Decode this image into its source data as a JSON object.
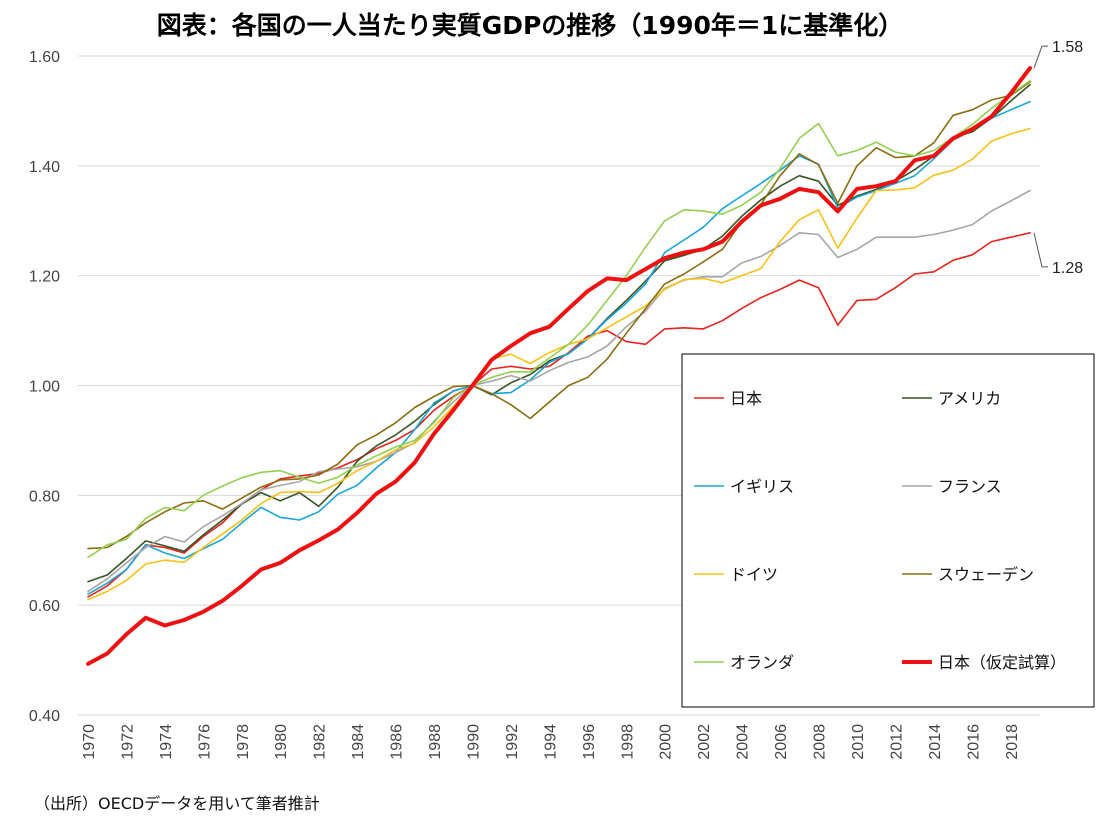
{
  "title": "図表：各国の一人当たり実質GDPの推移（1990年＝1に基準化）",
  "source": "（出所）OECDデータを用いて筆者推計",
  "chart_data": {
    "type": "line",
    "title": "図表：各国の一人当たり実質GDPの推移（1990年＝1に基準化）",
    "xlabel": "",
    "ylabel": "",
    "ylim": [
      0.4,
      1.6
    ],
    "yticks": [
      "0.40",
      "0.60",
      "0.80",
      "1.00",
      "1.20",
      "1.40",
      "1.60"
    ],
    "xlim": [
      1970,
      2019
    ],
    "xticks": [
      "1970",
      "1972",
      "1974",
      "1976",
      "1978",
      "1980",
      "1982",
      "1984",
      "1986",
      "1988",
      "1990",
      "1992",
      "1994",
      "1996",
      "1998",
      "2000",
      "2002",
      "2004",
      "2006",
      "2008",
      "2010",
      "2012",
      "2014",
      "2016",
      "2018"
    ],
    "grid": "horizontal",
    "legend": "bottom-right",
    "end_labels": [
      {
        "text": "1.58",
        "value": 1.578
      },
      {
        "text": "1.28",
        "value": 1.278
      }
    ],
    "x": [
      1970,
      1971,
      1972,
      1973,
      1974,
      1975,
      1976,
      1977,
      1978,
      1979,
      1980,
      1981,
      1982,
      1983,
      1984,
      1985,
      1986,
      1987,
      1988,
      1989,
      1990,
      1991,
      1992,
      1993,
      1994,
      1995,
      1996,
      1997,
      1998,
      1999,
      2000,
      2001,
      2002,
      2003,
      2004,
      2005,
      2006,
      2007,
      2008,
      2009,
      2010,
      2011,
      2012,
      2013,
      2014,
      2015,
      2016,
      2017,
      2018,
      2019
    ],
    "series": [
      {
        "name": "日本",
        "color": "#e8231e",
        "width": 1.6,
        "values": [
          0.615,
          0.635,
          0.665,
          0.71,
          0.705,
          0.695,
          0.725,
          0.75,
          0.785,
          0.81,
          0.83,
          0.835,
          0.84,
          0.85,
          0.865,
          0.885,
          0.9,
          0.92,
          0.955,
          0.98,
          1.0,
          1.03,
          1.035,
          1.03,
          1.035,
          1.06,
          1.09,
          1.1,
          1.08,
          1.075,
          1.103,
          1.105,
          1.103,
          1.118,
          1.14,
          1.16,
          1.175,
          1.192,
          1.178,
          1.11,
          1.155,
          1.157,
          1.178,
          1.203,
          1.207,
          1.228,
          1.238,
          1.262,
          1.27,
          1.278
        ]
      },
      {
        "name": "アメリカ",
        "color": "#375623",
        "width": 1.6,
        "values": [
          0.643,
          0.655,
          0.685,
          0.717,
          0.708,
          0.698,
          0.728,
          0.755,
          0.784,
          0.805,
          0.79,
          0.805,
          0.78,
          0.815,
          0.862,
          0.89,
          0.91,
          0.935,
          0.965,
          0.99,
          1.0,
          0.983,
          1.005,
          1.02,
          1.045,
          1.058,
          1.085,
          1.122,
          1.155,
          1.19,
          1.227,
          1.237,
          1.248,
          1.272,
          1.308,
          1.338,
          1.363,
          1.382,
          1.372,
          1.328,
          1.345,
          1.357,
          1.372,
          1.393,
          1.418,
          1.452,
          1.462,
          1.487,
          1.518,
          1.548
        ]
      },
      {
        "name": "イギリス",
        "color": "#17a6d8",
        "width": 1.6,
        "values": [
          0.62,
          0.64,
          0.665,
          0.71,
          0.695,
          0.685,
          0.703,
          0.72,
          0.75,
          0.778,
          0.76,
          0.755,
          0.77,
          0.802,
          0.818,
          0.85,
          0.878,
          0.92,
          0.968,
          0.99,
          1.0,
          0.985,
          0.987,
          1.01,
          1.042,
          1.058,
          1.085,
          1.12,
          1.15,
          1.185,
          1.242,
          1.265,
          1.288,
          1.322,
          1.345,
          1.368,
          1.392,
          1.418,
          1.403,
          1.323,
          1.343,
          1.355,
          1.368,
          1.382,
          1.413,
          1.447,
          1.465,
          1.487,
          1.502,
          1.517
        ]
      },
      {
        "name": "フランス",
        "color": "#a6a6a6",
        "width": 1.6,
        "values": [
          0.625,
          0.648,
          0.677,
          0.705,
          0.725,
          0.715,
          0.743,
          0.763,
          0.785,
          0.81,
          0.818,
          0.825,
          0.843,
          0.848,
          0.852,
          0.862,
          0.878,
          0.896,
          0.935,
          0.97,
          1.0,
          1.008,
          1.018,
          1.008,
          1.027,
          1.042,
          1.052,
          1.072,
          1.107,
          1.135,
          1.177,
          1.192,
          1.198,
          1.198,
          1.223,
          1.235,
          1.255,
          1.278,
          1.275,
          1.233,
          1.248,
          1.27,
          1.27,
          1.27,
          1.275,
          1.283,
          1.293,
          1.318,
          1.336,
          1.355
        ]
      },
      {
        "name": "ドイツ",
        "color": "#f7c115",
        "width": 1.6,
        "values": [
          0.61,
          0.625,
          0.645,
          0.675,
          0.682,
          0.678,
          0.705,
          0.73,
          0.755,
          0.785,
          0.805,
          0.807,
          0.805,
          0.822,
          0.845,
          0.862,
          0.883,
          0.895,
          0.925,
          0.962,
          1.0,
          1.048,
          1.057,
          1.04,
          1.06,
          1.075,
          1.085,
          1.105,
          1.125,
          1.145,
          1.175,
          1.193,
          1.195,
          1.187,
          1.2,
          1.213,
          1.262,
          1.302,
          1.32,
          1.25,
          1.305,
          1.355,
          1.356,
          1.36,
          1.383,
          1.392,
          1.412,
          1.445,
          1.458,
          1.468
        ]
      },
      {
        "name": "スウェーデン",
        "color": "#8b6c0f",
        "width": 1.6,
        "values": [
          0.703,
          0.705,
          0.725,
          0.75,
          0.77,
          0.786,
          0.79,
          0.775,
          0.795,
          0.815,
          0.828,
          0.83,
          0.837,
          0.857,
          0.892,
          0.91,
          0.932,
          0.96,
          0.98,
          0.998,
          1.0,
          0.985,
          0.965,
          0.94,
          0.97,
          1.0,
          1.015,
          1.048,
          1.095,
          1.14,
          1.185,
          1.203,
          1.225,
          1.248,
          1.298,
          1.33,
          1.382,
          1.422,
          1.402,
          1.332,
          1.4,
          1.433,
          1.415,
          1.418,
          1.442,
          1.492,
          1.502,
          1.52,
          1.528,
          1.553
        ]
      },
      {
        "name": "オランダ",
        "color": "#92d050",
        "width": 1.6,
        "values": [
          0.687,
          0.71,
          0.72,
          0.758,
          0.778,
          0.772,
          0.8,
          0.817,
          0.832,
          0.842,
          0.845,
          0.833,
          0.822,
          0.833,
          0.855,
          0.872,
          0.888,
          0.9,
          0.932,
          0.978,
          1.0,
          1.015,
          1.025,
          1.025,
          1.05,
          1.075,
          1.11,
          1.155,
          1.2,
          1.252,
          1.3,
          1.32,
          1.318,
          1.312,
          1.328,
          1.352,
          1.395,
          1.45,
          1.477,
          1.418,
          1.428,
          1.443,
          1.425,
          1.418,
          1.428,
          1.452,
          1.475,
          1.505,
          1.53,
          1.555
        ]
      },
      {
        "name": "日本（仮定試算）",
        "color": "#ee1111",
        "width": 4,
        "values": [
          0.493,
          0.512,
          0.547,
          0.577,
          0.563,
          0.573,
          0.588,
          0.608,
          0.635,
          0.665,
          0.677,
          0.7,
          0.718,
          0.738,
          0.768,
          0.803,
          0.825,
          0.86,
          0.912,
          0.955,
          1.0,
          1.047,
          1.072,
          1.095,
          1.107,
          1.14,
          1.172,
          1.195,
          1.192,
          1.212,
          1.232,
          1.242,
          1.248,
          1.262,
          1.298,
          1.328,
          1.34,
          1.358,
          1.352,
          1.317,
          1.358,
          1.363,
          1.372,
          1.41,
          1.418,
          1.45,
          1.467,
          1.49,
          1.532,
          1.578
        ]
      }
    ]
  }
}
